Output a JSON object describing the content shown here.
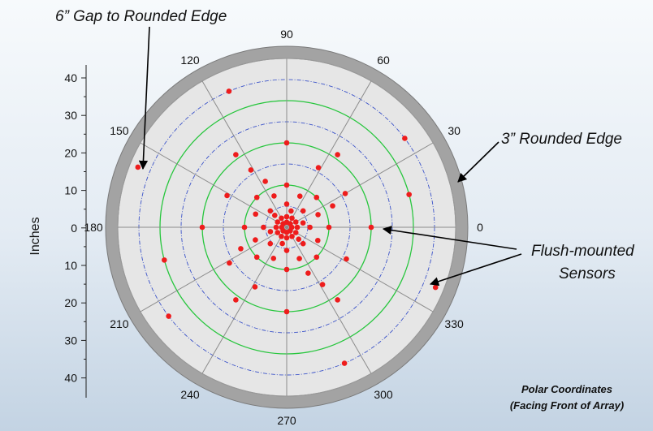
{
  "chart_data": {
    "type": "scatter",
    "coordinate_system": "polar",
    "ylabel": "Inches",
    "y_tick_labels": [
      "40",
      "30",
      "20",
      "10",
      "0",
      "10",
      "20",
      "30",
      "40"
    ],
    "angle_labels": [
      "0",
      "30",
      "60",
      "90",
      "120",
      "150",
      "180",
      "210",
      "240",
      "270",
      "300",
      "330"
    ],
    "radial_range": [
      0,
      40
    ],
    "grid": true,
    "series": [
      {
        "points_polar": [
          {
            "r": 1.2,
            "theta": 0
          },
          {
            "r": 1.2,
            "theta": 45
          },
          {
            "r": 1.2,
            "theta": 90
          },
          {
            "r": 1.2,
            "theta": 135
          },
          {
            "r": 1.2,
            "theta": 180
          },
          {
            "r": 1.2,
            "theta": 225
          },
          {
            "r": 1.2,
            "theta": 270
          },
          {
            "r": 1.2,
            "theta": 315
          },
          {
            "r": 2.5,
            "theta": 0
          },
          {
            "r": 2.5,
            "theta": 30
          },
          {
            "r": 2.5,
            "theta": 60
          },
          {
            "r": 2.5,
            "theta": 90
          },
          {
            "r": 2.5,
            "theta": 120
          },
          {
            "r": 2.5,
            "theta": 150
          },
          {
            "r": 2.5,
            "theta": 180
          },
          {
            "r": 2.5,
            "theta": 210
          },
          {
            "r": 2.5,
            "theta": 240
          },
          {
            "r": 2.5,
            "theta": 270
          },
          {
            "r": 2.5,
            "theta": 300
          },
          {
            "r": 2.5,
            "theta": 330
          },
          {
            "r": 4,
            "theta": 15
          },
          {
            "r": 4,
            "theta": 75
          },
          {
            "r": 4,
            "theta": 135
          },
          {
            "r": 4,
            "theta": 195
          },
          {
            "r": 4,
            "theta": 255
          },
          {
            "r": 4,
            "theta": 315
          },
          {
            "r": 5.5,
            "theta": 0
          },
          {
            "r": 5.5,
            "theta": 45
          },
          {
            "r": 5.5,
            "theta": 90
          },
          {
            "r": 5.5,
            "theta": 135
          },
          {
            "r": 5.5,
            "theta": 180
          },
          {
            "r": 5.5,
            "theta": 225
          },
          {
            "r": 5.5,
            "theta": 270
          },
          {
            "r": 5.5,
            "theta": 315
          },
          {
            "r": 8,
            "theta": 22
          },
          {
            "r": 8,
            "theta": 67
          },
          {
            "r": 8,
            "theta": 112
          },
          {
            "r": 8,
            "theta": 157
          },
          {
            "r": 8,
            "theta": 202
          },
          {
            "r": 8,
            "theta": 247
          },
          {
            "r": 8,
            "theta": 292
          },
          {
            "r": 8,
            "theta": 337
          },
          {
            "r": 10,
            "theta": 0
          },
          {
            "r": 10,
            "theta": 45
          },
          {
            "r": 10,
            "theta": 90
          },
          {
            "r": 10,
            "theta": 135
          },
          {
            "r": 10,
            "theta": 180
          },
          {
            "r": 10,
            "theta": 225
          },
          {
            "r": 10,
            "theta": 270
          },
          {
            "r": 10,
            "theta": 315
          },
          {
            "r": 12,
            "theta": 25
          },
          {
            "r": 12,
            "theta": 115
          },
          {
            "r": 12,
            "theta": 205
          },
          {
            "r": 12,
            "theta": 295
          },
          {
            "r": 16,
            "theta": 30
          },
          {
            "r": 16,
            "theta": 62
          },
          {
            "r": 16,
            "theta": 122
          },
          {
            "r": 16,
            "theta": 152
          },
          {
            "r": 16,
            "theta": 212
          },
          {
            "r": 16,
            "theta": 242
          },
          {
            "r": 16,
            "theta": 302
          },
          {
            "r": 16,
            "theta": 332
          },
          {
            "r": 20,
            "theta": 0
          },
          {
            "r": 20,
            "theta": 90
          },
          {
            "r": 20,
            "theta": 180
          },
          {
            "r": 20,
            "theta": 270
          },
          {
            "r": 21,
            "theta": 55
          },
          {
            "r": 21,
            "theta": 125
          },
          {
            "r": 21,
            "theta": 235
          },
          {
            "r": 21,
            "theta": 305
          },
          {
            "r": 30,
            "theta": 15
          },
          {
            "r": 30,
            "theta": 195
          },
          {
            "r": 35,
            "theta": 37
          },
          {
            "r": 35,
            "theta": 217
          },
          {
            "r": 35,
            "theta": 113
          },
          {
            "r": 35,
            "theta": 293
          },
          {
            "r": 38,
            "theta": 158
          },
          {
            "r": 38,
            "theta": 338
          }
        ],
        "color": "#ee1c1c"
      }
    ],
    "annotations": [
      "6” Gap to Rounded Edge",
      "3” Rounded Edge",
      "Flush-mounted",
      "Sensors",
      "Polar Coordinates",
      "(Facing Front of Array)"
    ],
    "colors": {
      "rim": "#a3a3a3",
      "disc": "#e6e6e6",
      "spoke": "#8c8c8c",
      "ring_green": "#27c63d",
      "ring_blue": "#3a52c9",
      "point": "#ee1c1c"
    }
  }
}
